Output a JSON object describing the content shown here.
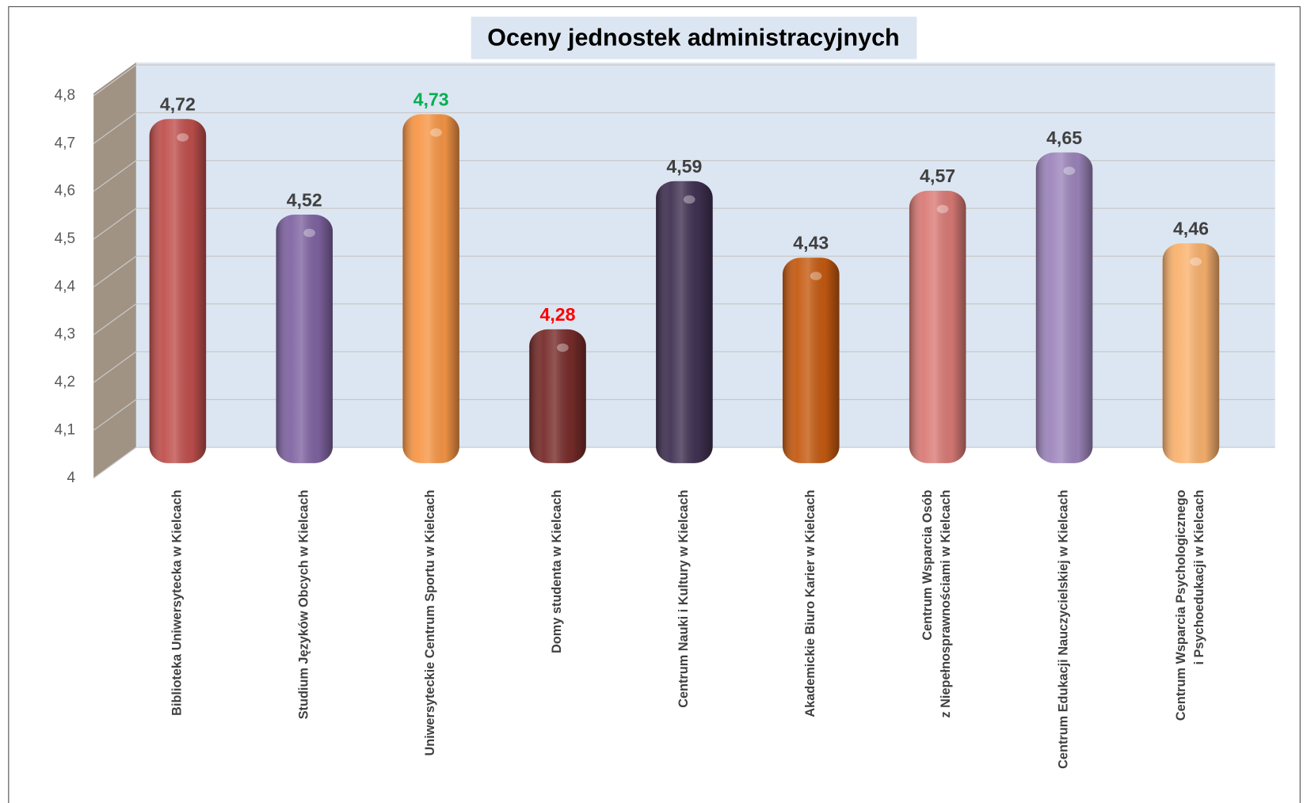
{
  "chart_data": {
    "type": "bar",
    "title": "Oceny jednostek administracyjnych",
    "categories": [
      "Biblioteka Uniwersytecka w Kielcach",
      "Studium Języków Obcych w Kielcach",
      "Uniwersyteckie Centrum Sportu w Kielcach",
      "Domy studenta w Kielcach",
      "Centrum Nauki i Kultury w Kielcach",
      "Akademickie Biuro Karier w Kielcach",
      "Centrum Wsparcia Osób\nz Niepełnosprawnościami w Kielcach",
      "Centrum Edukacji Nauczycielskiej w Kielcach",
      "Centrum Wsparcia Psychologicznego\ni Psychoedukacji w Kielcach"
    ],
    "values": [
      4.72,
      4.52,
      4.73,
      4.28,
      4.59,
      4.43,
      4.57,
      4.65,
      4.46
    ],
    "value_labels": [
      "4,72",
      "4,52",
      "4,73",
      "4,28",
      "4,59",
      "4,43",
      "4,57",
      "4,65",
      "4,46"
    ],
    "colors": [
      "#c0504d",
      "#8064a2",
      "#f79646",
      "#772c2a",
      "#403152",
      "#c55a11",
      "#da7b76",
      "#9d85bb",
      "#fab26e"
    ],
    "label_colors": [
      "#404040",
      "#404040",
      "#00b050",
      "#ff0000",
      "#404040",
      "#404040",
      "#404040",
      "#404040",
      "#404040"
    ],
    "ylim": [
      4,
      4.8
    ],
    "yticks": [
      4,
      {
        "value": 4.1,
        "label": "4,1"
      },
      {
        "value": 4.2,
        "label": "4,2"
      },
      {
        "value": 4.3,
        "label": "4,3"
      },
      {
        "value": 4.4,
        "label": "4,4"
      },
      {
        "value": 4.5,
        "label": "4,5"
      },
      {
        "value": 4.6,
        "label": "4,6"
      },
      {
        "value": 4.7,
        "label": "4,7"
      },
      {
        "value": 4.8,
        "label": "4,8"
      }
    ],
    "grid": true
  }
}
